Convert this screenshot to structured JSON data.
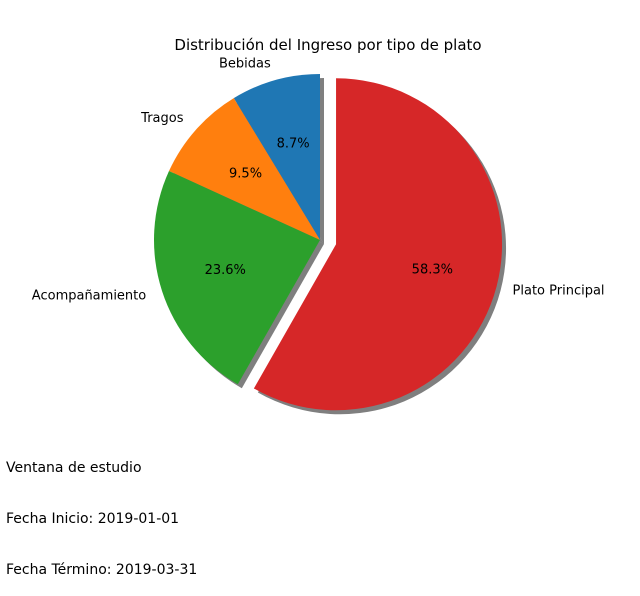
{
  "chart_data": {
    "type": "pie",
    "title": "Distribución del Ingreso por tipo de plato",
    "categories": [
      "Bebidas",
      "Tragos",
      "Acompañamiento",
      "Plato Principal"
    ],
    "values": [
      8.7,
      9.5,
      23.6,
      58.3
    ],
    "value_labels": [
      "8.7%",
      "9.5%",
      "23.6%",
      "58.3%"
    ],
    "colors": [
      "#1f77b4",
      "#ff7f0e",
      "#2ca02c",
      "#d62728"
    ],
    "exploded": "Plato Principal",
    "shadow": true,
    "start_angle_deg": 90,
    "direction": "counterclockwise"
  },
  "footnote": {
    "line1": "Ventana de estudio",
    "line2": "Fecha Inicio: 2019-01-01",
    "line3": "Fecha Término: 2019-03-31"
  }
}
